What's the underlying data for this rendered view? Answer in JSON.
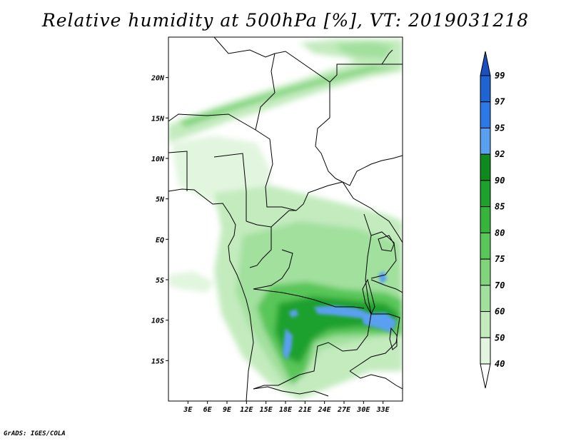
{
  "title": "Relative humidity at 500hPa [%], VT: 2019031218",
  "credit": "GrADS: IGES/COLA",
  "map": {
    "projection": "latlon",
    "lon_range": [
      0,
      36
    ],
    "lat_range": [
      -20,
      25
    ],
    "lat_ticks": [
      {
        "value": 20,
        "label": "20N"
      },
      {
        "value": 15,
        "label": "15N"
      },
      {
        "value": 10,
        "label": "10N"
      },
      {
        "value": 5,
        "label": "5N"
      },
      {
        "value": 0,
        "label": "EQ"
      },
      {
        "value": -5,
        "label": "5S"
      },
      {
        "value": -10,
        "label": "10S"
      },
      {
        "value": -15,
        "label": "15S"
      }
    ],
    "lon_ticks": [
      {
        "value": 3,
        "label": "3E"
      },
      {
        "value": 6,
        "label": "6E"
      },
      {
        "value": 9,
        "label": "9E"
      },
      {
        "value": 12,
        "label": "12E"
      },
      {
        "value": 15,
        "label": "15E"
      },
      {
        "value": 18,
        "label": "18E"
      },
      {
        "value": 21,
        "label": "21E"
      },
      {
        "value": 24,
        "label": "24E"
      },
      {
        "value": 27,
        "label": "27E"
      },
      {
        "value": 30,
        "label": "30E"
      },
      {
        "value": 33,
        "label": "33E"
      }
    ]
  },
  "colorbar": {
    "levels": [
      {
        "label": "99",
        "color": "#1e64d2"
      },
      {
        "label": "97",
        "color": "#2c78e6"
      },
      {
        "label": "95",
        "color": "#5aa0f0"
      },
      {
        "label": "92",
        "color": "#0f8a1e"
      },
      {
        "label": "90",
        "color": "#1fa12d"
      },
      {
        "label": "85",
        "color": "#36b43c"
      },
      {
        "label": "80",
        "color": "#58c658"
      },
      {
        "label": "75",
        "color": "#7fd47c"
      },
      {
        "label": "70",
        "color": "#a2e09e"
      },
      {
        "label": "60",
        "color": "#c3ebbe"
      },
      {
        "label": "50",
        "color": "#e2f6df"
      },
      {
        "label": "40",
        "color": "#ffffff"
      }
    ],
    "top_color": "#1a4fc0"
  }
}
